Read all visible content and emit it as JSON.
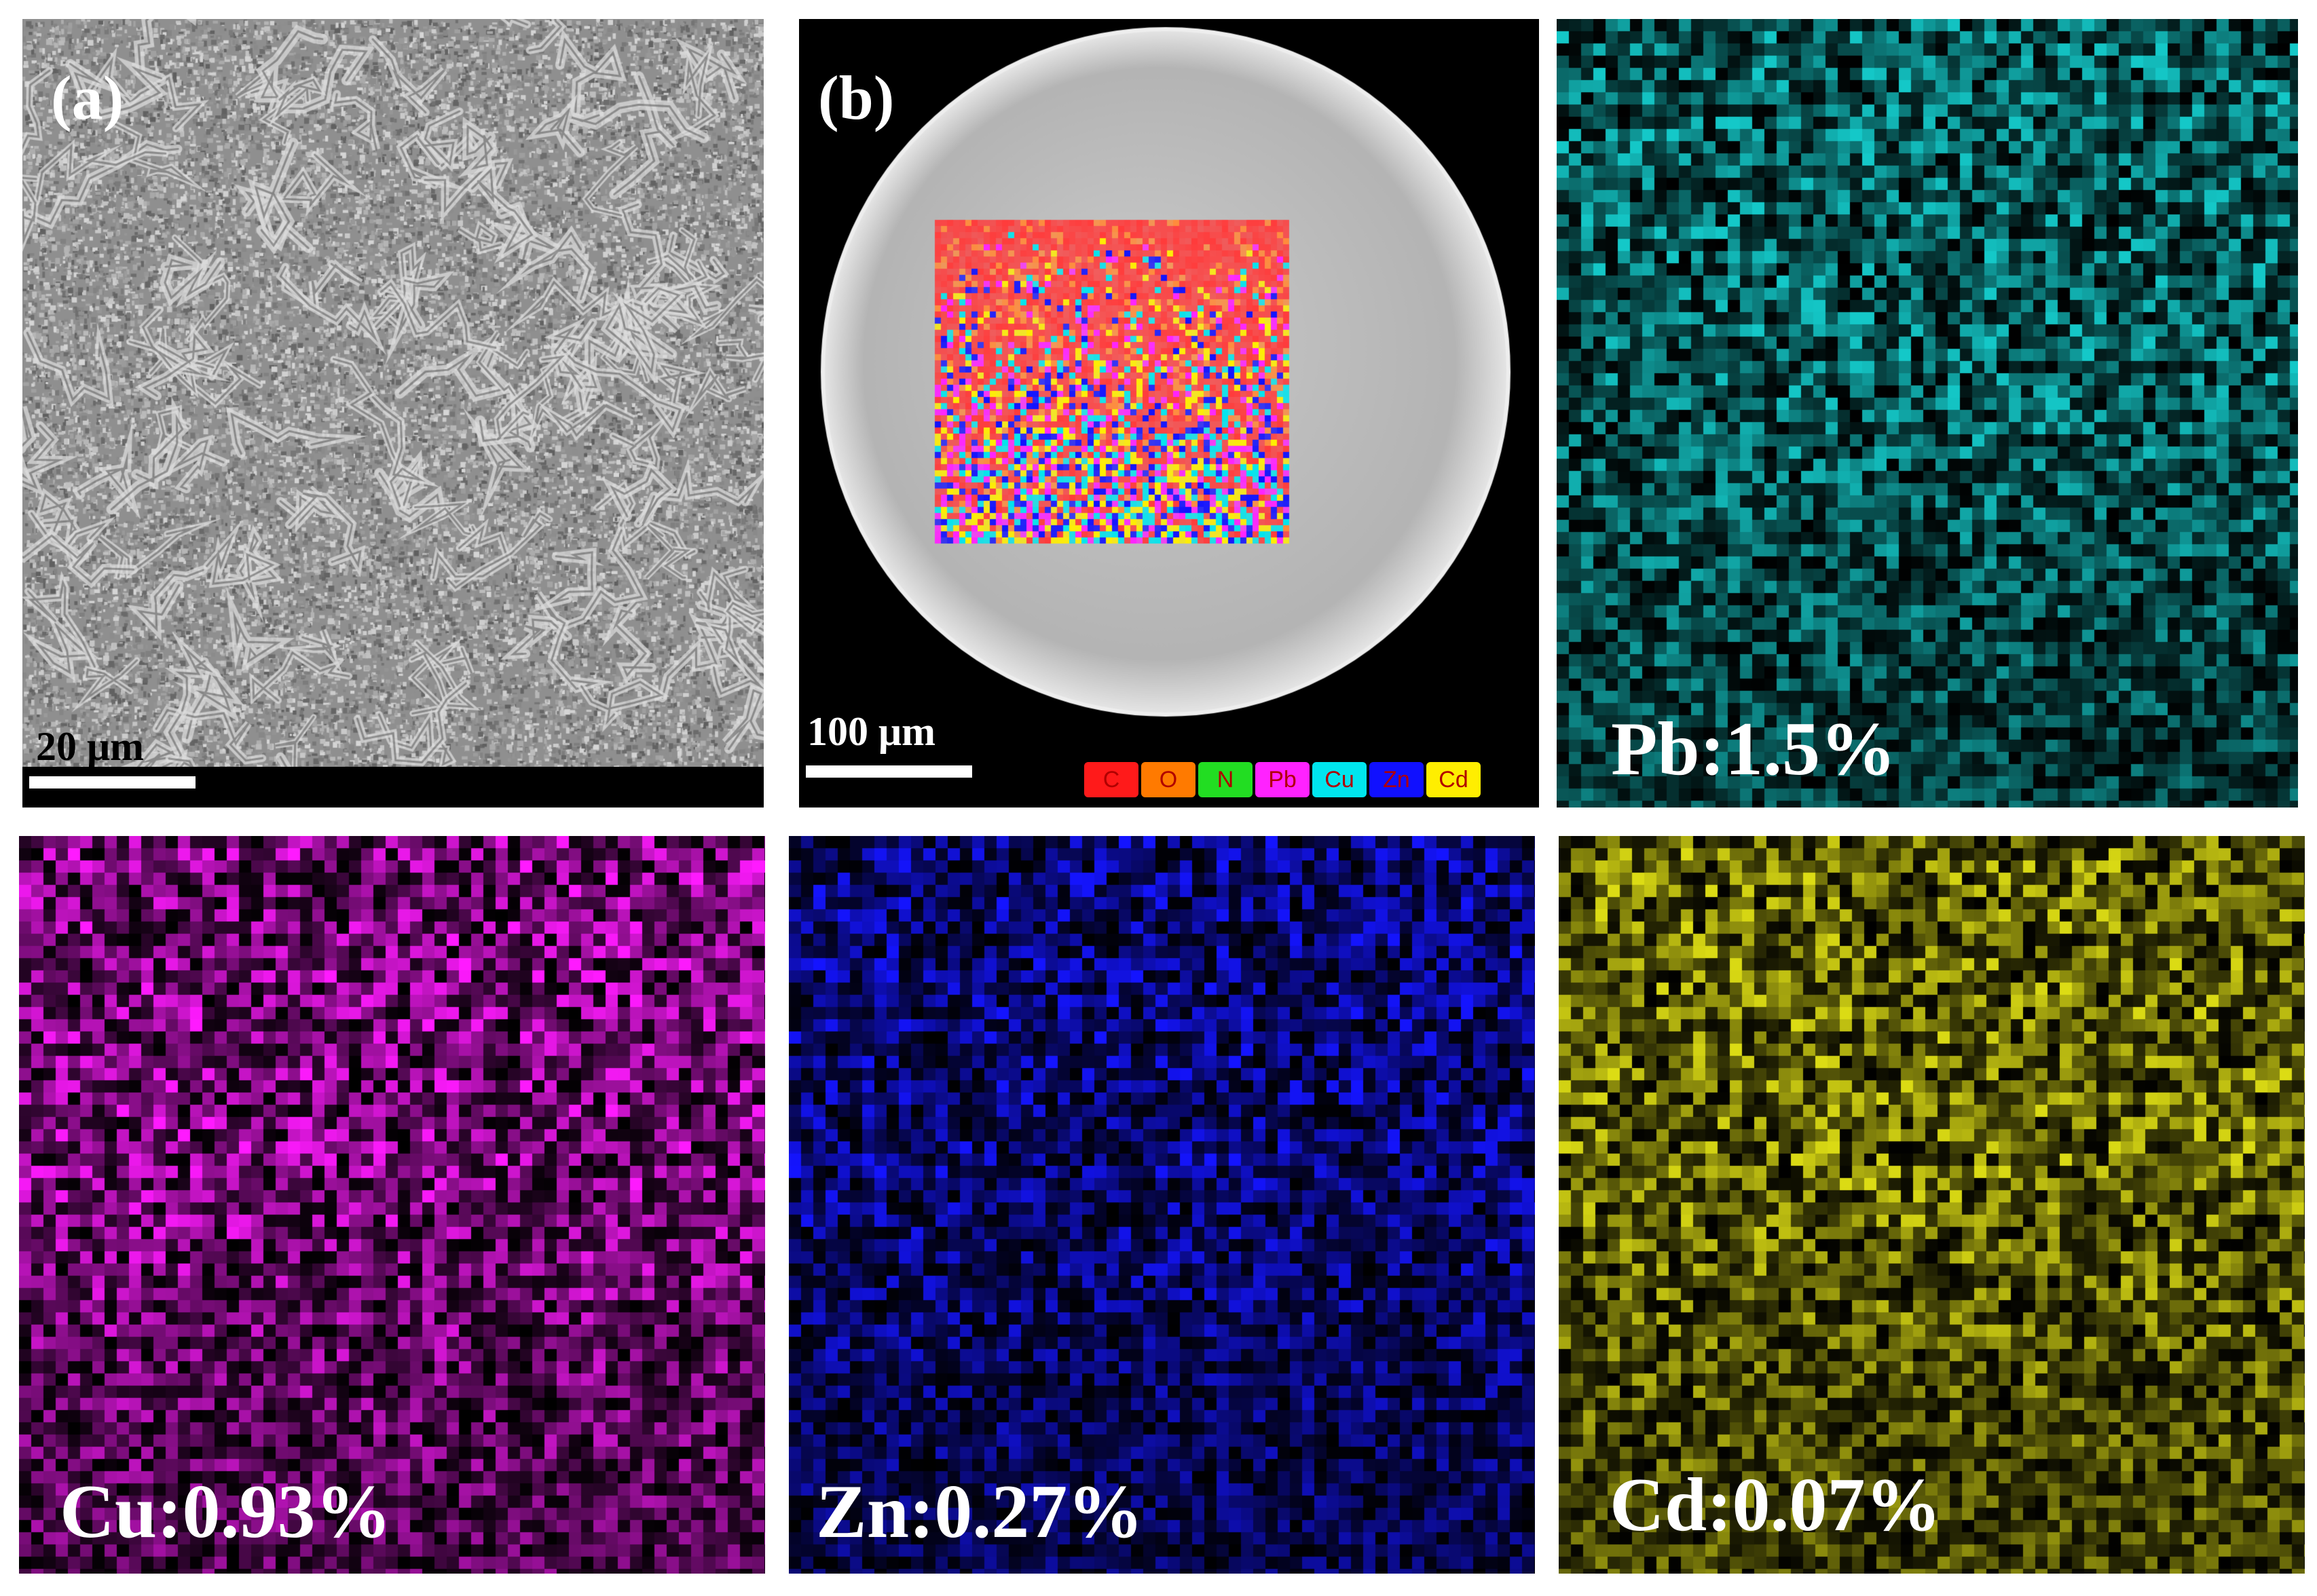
{
  "panels": {
    "a": {
      "label": "(a)",
      "scale": "20 μm"
    },
    "b": {
      "label": "(b)",
      "scale": "100 μm",
      "legend": [
        {
          "text": "C",
          "color": "#ff1a1a"
        },
        {
          "text": "O",
          "color": "#ff7a00"
        },
        {
          "text": "N",
          "color": "#22dd22"
        },
        {
          "text": "Pb",
          "color": "#ff22ff"
        },
        {
          "text": "Cu",
          "color": "#00e5ee"
        },
        {
          "text": "Zn",
          "color": "#1010ff"
        },
        {
          "text": "Cd",
          "color": "#ffee00"
        }
      ]
    },
    "pb": {
      "text": "Pb:1.5%",
      "color": "#14c8c8"
    },
    "cu": {
      "text": "Cu:0.93%",
      "color": "#ff1aff"
    },
    "zn": {
      "text": "Zn:0.27%",
      "color": "#1414ff"
    },
    "cd": {
      "text": "Cd:0.07%",
      "color": "#dcdc14"
    }
  }
}
